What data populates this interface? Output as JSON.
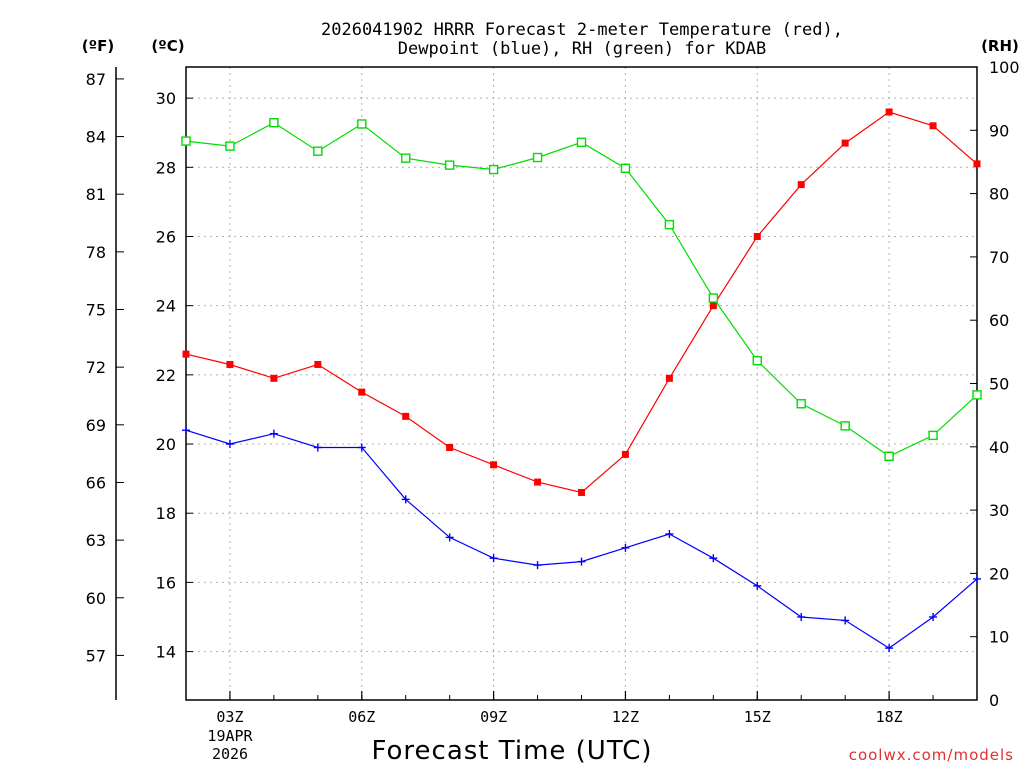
{
  "chart_data": {
    "type": "line",
    "title_line1": "2026041902 HRRR Forecast 2-meter Temperature (red),",
    "title_line2": "Dewpoint (blue), RH (green) for KDAB",
    "xlabel": "Forecast Time (UTC)",
    "date_label_line1": "19APR",
    "date_label_line2": "2026",
    "watermark": "coolwx.com/models",
    "unit_labels": {
      "fahrenheit": "(ºF)",
      "celsius": "(ºC)",
      "rh": "(RH)"
    },
    "x_hours": [
      2,
      3,
      4,
      5,
      6,
      7,
      8,
      9,
      10,
      11,
      12,
      13,
      14,
      15,
      16,
      17,
      18,
      19,
      20
    ],
    "x_range": [
      2,
      20
    ],
    "x_ticks": [
      3,
      6,
      9,
      12,
      15,
      18
    ],
    "x_tick_labels": [
      "03Z",
      "06Z",
      "09Z",
      "12Z",
      "15Z",
      "18Z"
    ],
    "celsius_range": [
      12.6,
      30.9
    ],
    "celsius_ticks": [
      14,
      16,
      18,
      20,
      22,
      24,
      26,
      28,
      30
    ],
    "fahrenheit_ticks": [
      57,
      60,
      63,
      66,
      69,
      72,
      75,
      78,
      81,
      84,
      87
    ],
    "rh_range": [
      0,
      100
    ],
    "rh_ticks": [
      0,
      10,
      20,
      30,
      40,
      50,
      60,
      70,
      80,
      90,
      100
    ],
    "series": [
      {
        "name": "Temperature",
        "color": "#ff0000",
        "marker": "filled-square",
        "axis": "celsius",
        "values": [
          22.6,
          22.3,
          21.9,
          22.3,
          21.5,
          20.8,
          19.9,
          19.4,
          18.9,
          18.6,
          19.7,
          21.9,
          24.0,
          26.0,
          27.5,
          28.7,
          29.6,
          29.2,
          28.1
        ]
      },
      {
        "name": "Dewpoint",
        "color": "#0000ff",
        "marker": "plus",
        "axis": "celsius",
        "values": [
          20.4,
          20.0,
          20.3,
          19.9,
          19.9,
          18.4,
          17.3,
          16.7,
          16.5,
          16.6,
          17.0,
          17.4,
          16.7,
          15.9,
          15.0,
          14.9,
          14.1,
          15.0,
          16.1
        ]
      },
      {
        "name": "RH",
        "color": "#00dd00",
        "marker": "open-square",
        "axis": "rh",
        "values": [
          88.3,
          87.5,
          91.2,
          86.7,
          91.0,
          85.6,
          84.5,
          83.8,
          85.7,
          88.1,
          84.0,
          75.1,
          63.5,
          53.6,
          46.8,
          43.3,
          38.5,
          41.8,
          48.2
        ]
      }
    ]
  }
}
